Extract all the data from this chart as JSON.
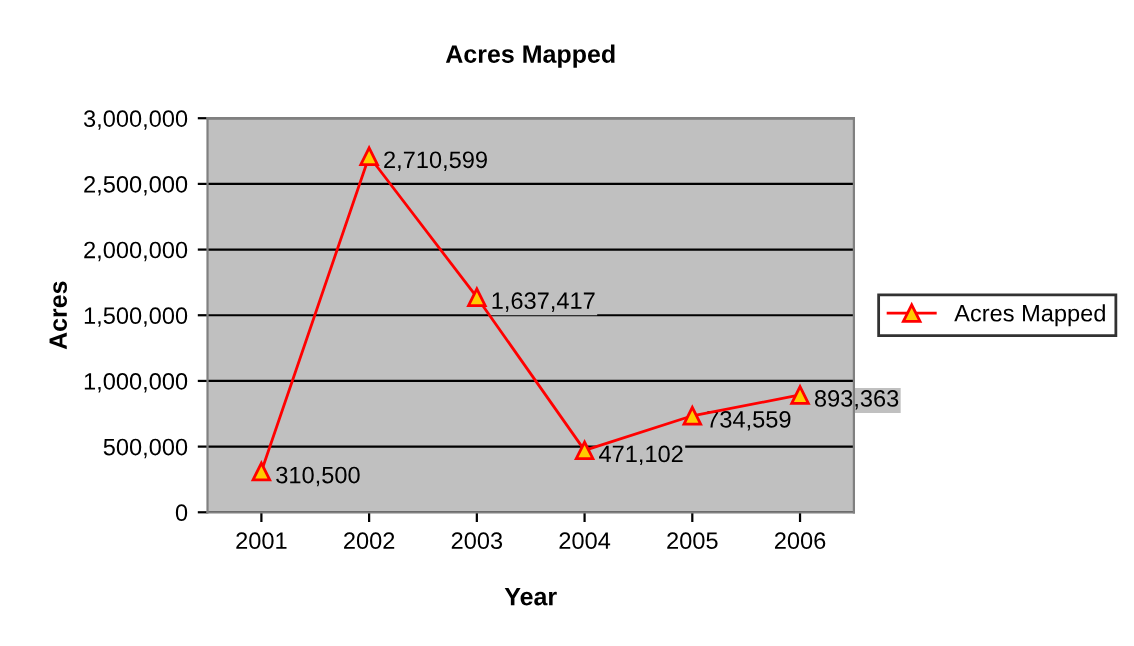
{
  "chart_data": {
    "type": "line",
    "title": "Acres Mapped",
    "xlabel": "Year",
    "ylabel": "Acres",
    "categories": [
      "2001",
      "2002",
      "2003",
      "2004",
      "2005",
      "2006"
    ],
    "series": [
      {
        "name": "Acres Mapped",
        "color": "#ff0000",
        "values": [
          310500,
          2710599,
          1637417,
          471102,
          734559,
          893363
        ],
        "value_labels": [
          "310,500",
          "2,710,599",
          "1,637,417",
          "471,102",
          "734,559",
          "893,363"
        ]
      }
    ],
    "ylim": [
      0,
      3000000
    ],
    "yticks": [
      {
        "value": 0,
        "label": "0"
      },
      {
        "value": 500000,
        "label": "500,000"
      },
      {
        "value": 1000000,
        "label": "1,000,000"
      },
      {
        "value": 1500000,
        "label": "1,500,000"
      },
      {
        "value": 2000000,
        "label": "2,000,000"
      },
      {
        "value": 2500000,
        "label": "2,500,000"
      },
      {
        "value": 3000000,
        "label": "3,000,000"
      }
    ],
    "grid": "y",
    "legend": "right",
    "marker": "triangle",
    "line_style": "solid"
  }
}
